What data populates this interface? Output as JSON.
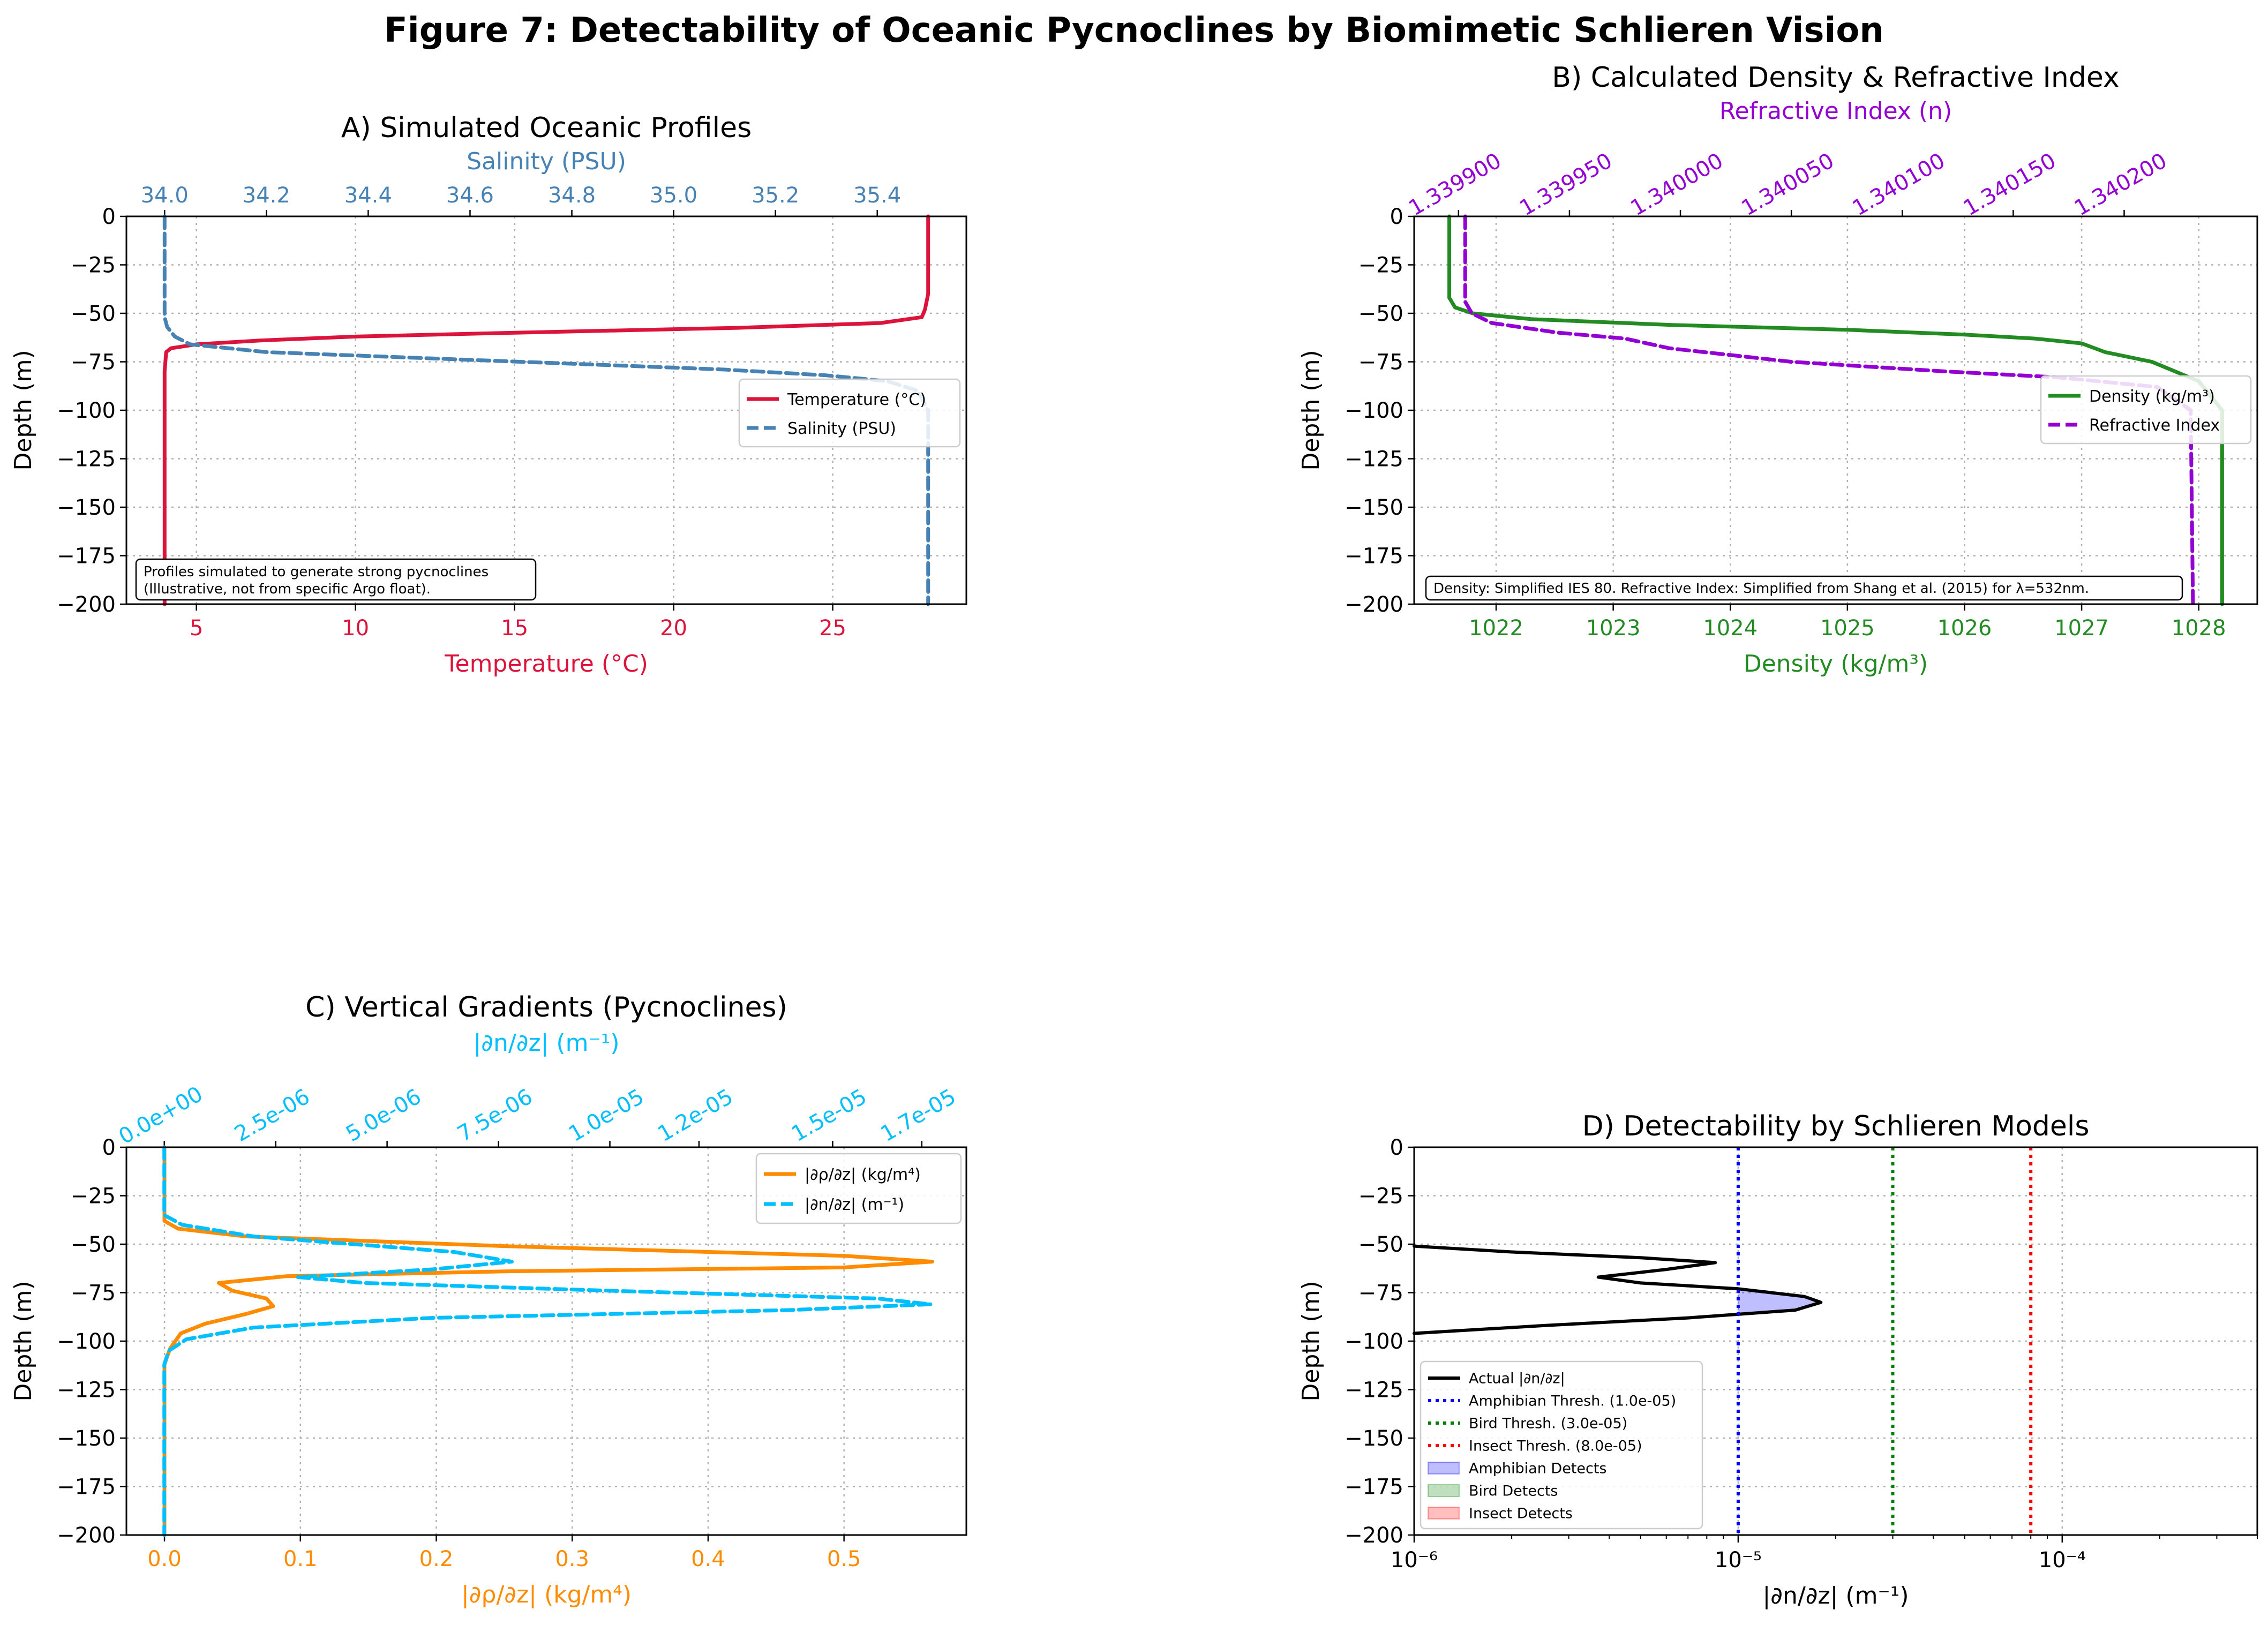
{
  "figure": {
    "suptitle": "Figure 7: Detectability of Oceanic Pycnoclines by Biomimetic Schlieren Vision"
  },
  "colors": {
    "temperature": "#dc143c",
    "salinity": "#4682b4",
    "density": "#228b22",
    "refractive": "#9400d3",
    "drho": "#ff8c00",
    "dn": "#00bfff",
    "amphibian": "#0000ff",
    "bird": "#008000",
    "insect": "#ff0000"
  },
  "chart_data": [
    {
      "id": "A",
      "type": "line",
      "title": "A) Simulated Oceanic Profiles",
      "xlabel": "Temperature (°C)",
      "x2label": "Salinity (PSU)",
      "ylabel": "Depth (m)",
      "xlim": [
        2.8,
        29.2
      ],
      "x2lim": [
        33.925,
        35.575
      ],
      "ylim": [
        -200,
        0
      ],
      "xticks": [
        5,
        10,
        15,
        20,
        25
      ],
      "x2ticks": [
        "34.0",
        "34.2",
        "34.4",
        "34.6",
        "34.8",
        "35.0",
        "35.2",
        "35.4"
      ],
      "yticks": [
        0,
        -25,
        -50,
        -75,
        -100,
        -125,
        -150,
        -175,
        -200
      ],
      "grid": true,
      "legend_position": "center-right",
      "series": [
        {
          "name": "Temperature (°C)",
          "axis": "x",
          "style": "solid",
          "x": [
            28,
            28,
            27.9,
            27.8,
            26.5,
            22,
            15,
            10,
            7,
            5,
            4.2,
            4.05,
            4,
            4,
            4
          ],
          "y": [
            0,
            -40,
            -48,
            -52,
            -55,
            -57.5,
            -60,
            -62,
            -64,
            -66,
            -68,
            -70,
            -80,
            -100,
            -200
          ]
        },
        {
          "name": "Salinity (PSU)",
          "axis": "x2",
          "style": "dashed",
          "x": [
            34.0,
            34.0,
            34.005,
            34.02,
            34.05,
            34.2,
            34.5,
            34.8,
            35.1,
            35.3,
            35.42,
            35.48,
            35.5,
            35.5
          ],
          "y": [
            0,
            -52,
            -57,
            -62,
            -66,
            -70,
            -73,
            -76,
            -79,
            -82,
            -85,
            -90,
            -100,
            -200
          ]
        }
      ],
      "annotation": "Profiles simulated to generate strong pycnoclines\n(Illustrative, not from specific Argo float)."
    },
    {
      "id": "B",
      "type": "line",
      "title": "B) Calculated Density & Refractive Index",
      "xlabel": "Density (kg/m³)",
      "x2label": "Refractive Index (n)",
      "ylabel": "Depth (m)",
      "xlim": [
        1021.3,
        1028.5
      ],
      "x2lim": [
        1.33988,
        1.34026
      ],
      "ylim": [
        -200,
        0
      ],
      "xticks": [
        1022,
        1023,
        1024,
        1025,
        1026,
        1027,
        1028
      ],
      "x2ticks": [
        "1.339900",
        "1.339950",
        "1.340000",
        "1.340050",
        "1.340100",
        "1.340150",
        "1.340200"
      ],
      "yticks": [
        0,
        -25,
        -50,
        -75,
        -100,
        -125,
        -150,
        -175,
        -200
      ],
      "grid": true,
      "legend_position": "center-right",
      "series": [
        {
          "name": "Density (kg/m³)",
          "axis": "x",
          "style": "solid",
          "x": [
            1021.6,
            1021.6,
            1021.65,
            1021.8,
            1022.3,
            1023.5,
            1025,
            1026,
            1026.6,
            1027,
            1027.2,
            1027.6,
            1028,
            1028.2,
            1028.2
          ],
          "y": [
            0,
            -42,
            -47,
            -50,
            -53,
            -56,
            -58.5,
            -61,
            -63,
            -65.5,
            -70,
            -75,
            -85,
            -100,
            -200
          ]
        },
        {
          "name": "Refractive Index",
          "axis": "x2",
          "style": "dashed",
          "x": [
            1.339903,
            1.339903,
            1.339906,
            1.339915,
            1.339945,
            1.339975,
            1.339995,
            1.34005,
            1.34012,
            1.34017,
            1.340215,
            1.34023,
            1.340231
          ],
          "y": [
            0,
            -44,
            -50,
            -55,
            -60,
            -63,
            -68,
            -75,
            -80,
            -83,
            -88,
            -100,
            -200
          ]
        }
      ],
      "annotation": "Density: Simplified IES 80. Refractive Index: Simplified from Shang et al. (2015) for λ=532nm."
    },
    {
      "id": "C",
      "type": "line",
      "title": "C) Vertical Gradients (Pycnoclines)",
      "xlabel": "|∂ρ/∂z| (kg/m⁴)",
      "x2label": "|∂n/∂z| (m⁻¹)",
      "ylabel": "Depth (m)",
      "xlim": [
        -0.028,
        0.59
      ],
      "x2lim": [
        -8.5e-07,
        1.8e-05
      ],
      "ylim": [
        -200,
        0
      ],
      "xticks": [
        "0.0",
        "0.1",
        "0.2",
        "0.3",
        "0.4",
        "0.5"
      ],
      "x2ticks": [
        "0.0e+00",
        "2.5e-06",
        "5.0e-06",
        "7.5e-06",
        "1.0e-05",
        "1.2e-05",
        "1.5e-05",
        "1.7e-05"
      ],
      "yticks": [
        0,
        -25,
        -50,
        -75,
        -100,
        -125,
        -150,
        -175,
        -200
      ],
      "grid": true,
      "legend_position": "top-right",
      "series": [
        {
          "name": "|∂ρ/∂z| (kg/m⁴)",
          "axis": "x",
          "style": "solid",
          "x": [
            0,
            0,
            0.01,
            0.06,
            0.25,
            0.5,
            0.565,
            0.5,
            0.25,
            0.09,
            0.04,
            0.05,
            0.075,
            0.08,
            0.06,
            0.03,
            0.012,
            0.004,
            0,
            0
          ],
          "y": [
            0,
            -38,
            -42,
            -46,
            -51,
            -56,
            -59,
            -62,
            -64,
            -66.5,
            -70,
            -74,
            -78,
            -82,
            -86,
            -91,
            -96,
            -104,
            -112,
            -200
          ]
        },
        {
          "name": "|∂n/∂z| (m⁻¹)",
          "axis": "x2",
          "style": "dashed",
          "x": [
            0,
            0,
            4e-07,
            2e-06,
            6.5e-06,
            7.8e-06,
            6e-06,
            3e-06,
            4.5e-06,
            1e-05,
            1.6e-05,
            1.72e-05,
            1.4e-05,
            6e-06,
            2e-06,
            5e-07,
            1e-07,
            0,
            0
          ],
          "y": [
            0,
            -35,
            -40,
            -46,
            -54,
            -59,
            -63,
            -67,
            -70,
            -74,
            -78,
            -81,
            -84,
            -88,
            -93,
            -99,
            -105,
            -112,
            -200
          ]
        }
      ]
    },
    {
      "id": "D",
      "type": "line",
      "title": "D) Detectability by Schlieren Models",
      "xlabel": "|∂n/∂z| (m⁻¹)",
      "ylabel": "Depth (m)",
      "xscale": "log",
      "xlim": [
        1e-06,
        0.0004
      ],
      "ylim": [
        -200,
        0
      ],
      "xticks": [
        "10⁻⁶",
        "10⁻⁵",
        "10⁻⁴"
      ],
      "yticks": [
        0,
        -25,
        -50,
        -75,
        -100,
        -125,
        -150,
        -175,
        -200
      ],
      "grid": true,
      "legend_position": "bottom-left",
      "series": [
        {
          "name": "Actual |∂n/∂z|",
          "style": "solid",
          "x": [
            1e-06,
            2e-06,
            5e-06,
            8.5e-06,
            6e-06,
            3.7e-06,
            5e-06,
            1e-05,
            1.6e-05,
            1.8e-05,
            1.5e-05,
            7e-06,
            2.5e-06,
            1e-06
          ],
          "y": [
            -51,
            -54,
            -57,
            -59.5,
            -63,
            -67,
            -70,
            -73,
            -77,
            -80,
            -84,
            -88,
            -92,
            -96
          ]
        }
      ],
      "thresholds": [
        {
          "name": "Amphibian Thresh. (1.0e-05)",
          "value": 1e-05,
          "color_key": "amphibian"
        },
        {
          "name": "Bird Thresh. (3.0e-05)",
          "value": 3e-05,
          "color_key": "bird"
        },
        {
          "name": "Insect Thresh. (8.0e-05)",
          "value": 8e-05,
          "color_key": "insect"
        }
      ],
      "fills": [
        {
          "name": "Amphibian Detects",
          "color_key": "amphibian"
        },
        {
          "name": "Bird Detects",
          "color_key": "bird"
        },
        {
          "name": "Insect Detects",
          "color_key": "insect"
        }
      ]
    }
  ]
}
